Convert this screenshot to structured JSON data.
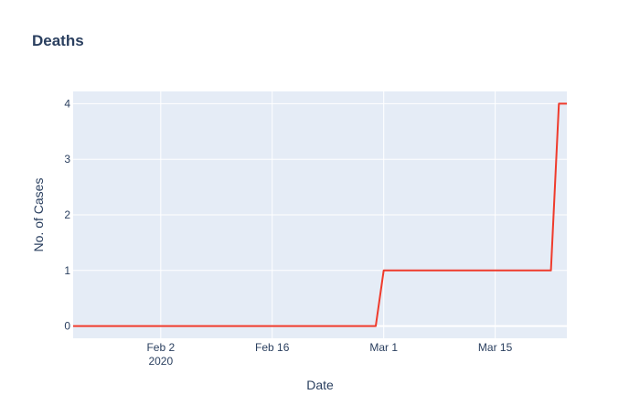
{
  "chart_data": {
    "type": "line",
    "title": "Deaths",
    "xlabel": "Date",
    "ylabel": "No. of Cases",
    "x_range": [
      "2020-01-22",
      "2020-03-24"
    ],
    "y_range": [
      -0.22,
      4.22
    ],
    "x_ticks": [
      {
        "date": "2020-02-02",
        "label": "Feb 2",
        "sublabel": "2020"
      },
      {
        "date": "2020-02-16",
        "label": "Feb 16"
      },
      {
        "date": "2020-03-01",
        "label": "Mar 1"
      },
      {
        "date": "2020-03-15",
        "label": "Mar 15"
      }
    ],
    "y_ticks": [
      0,
      1,
      2,
      3,
      4
    ],
    "grid": true,
    "series": [
      {
        "color": "#EF3B2C",
        "points": [
          {
            "x": "2020-01-22",
            "y": 0
          },
          {
            "x": "2020-02-29",
            "y": 0
          },
          {
            "x": "2020-03-01",
            "y": 1
          },
          {
            "x": "2020-03-22",
            "y": 1
          },
          {
            "x": "2020-03-23",
            "y": 4
          },
          {
            "x": "2020-03-24",
            "y": 4
          }
        ]
      }
    ]
  },
  "colors": {
    "plot_bg": "#E5ECF6",
    "grid": "#FFFFFF",
    "title": "#2A3F5F",
    "axis_text": "#2A3F5F",
    "line": "#EF3B2C"
  }
}
